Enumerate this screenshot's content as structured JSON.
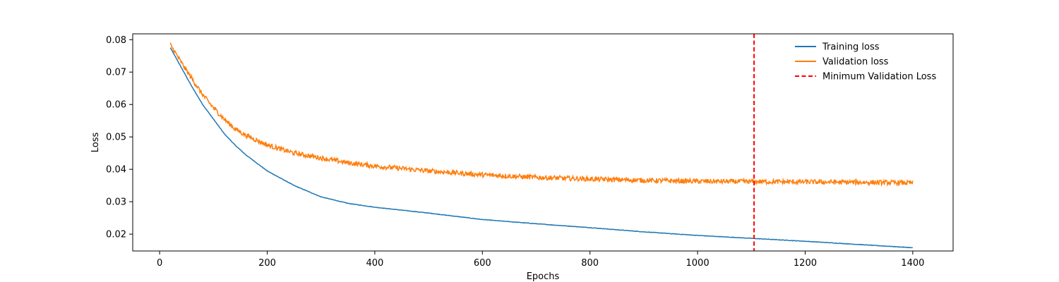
{
  "chart_data": {
    "type": "line",
    "title": "",
    "xlabel": "Epochs",
    "ylabel": "Loss",
    "xlim": [
      -50,
      1475
    ],
    "ylim": [
      0.0148,
      0.0818
    ],
    "xticks": [
      0,
      200,
      400,
      600,
      800,
      1000,
      1200,
      1400
    ],
    "yticks": [
      0.02,
      0.03,
      0.04,
      0.05,
      0.06,
      0.07,
      0.08
    ],
    "grid": false,
    "legend_position": "top-right",
    "series": [
      {
        "name": "Training loss",
        "color": "#1f77b4",
        "style": "solid",
        "x": [
          20,
          40,
          60,
          80,
          100,
          120,
          140,
          160,
          180,
          200,
          250,
          300,
          350,
          400,
          500,
          600,
          700,
          800,
          900,
          1000,
          1100,
          1200,
          1300,
          1400
        ],
        "y": [
          0.0775,
          0.0715,
          0.0655,
          0.06,
          0.0555,
          0.051,
          0.0475,
          0.0445,
          0.042,
          0.0395,
          0.035,
          0.0315,
          0.0295,
          0.0283,
          0.0265,
          0.0245,
          0.0232,
          0.022,
          0.0207,
          0.0196,
          0.0187,
          0.0178,
          0.0168,
          0.0158
        ]
      },
      {
        "name": "Validation loss",
        "color": "#ff7f0e",
        "style": "solid",
        "x": [
          20,
          40,
          60,
          80,
          100,
          120,
          140,
          160,
          180,
          200,
          250,
          300,
          350,
          400,
          500,
          600,
          700,
          800,
          900,
          1000,
          1100,
          1200,
          1300,
          1400
        ],
        "y": [
          0.0785,
          0.073,
          0.068,
          0.063,
          0.059,
          0.0555,
          0.0525,
          0.0505,
          0.049,
          0.0475,
          0.045,
          0.0435,
          0.042,
          0.041,
          0.0395,
          0.0383,
          0.0375,
          0.037,
          0.0366,
          0.0363,
          0.0362,
          0.0361,
          0.036,
          0.0358
        ]
      }
    ],
    "vlines": [
      {
        "name": "Minimum Validation Loss",
        "x": 1105,
        "color": "#ff0000",
        "style": "dashed"
      }
    ]
  }
}
